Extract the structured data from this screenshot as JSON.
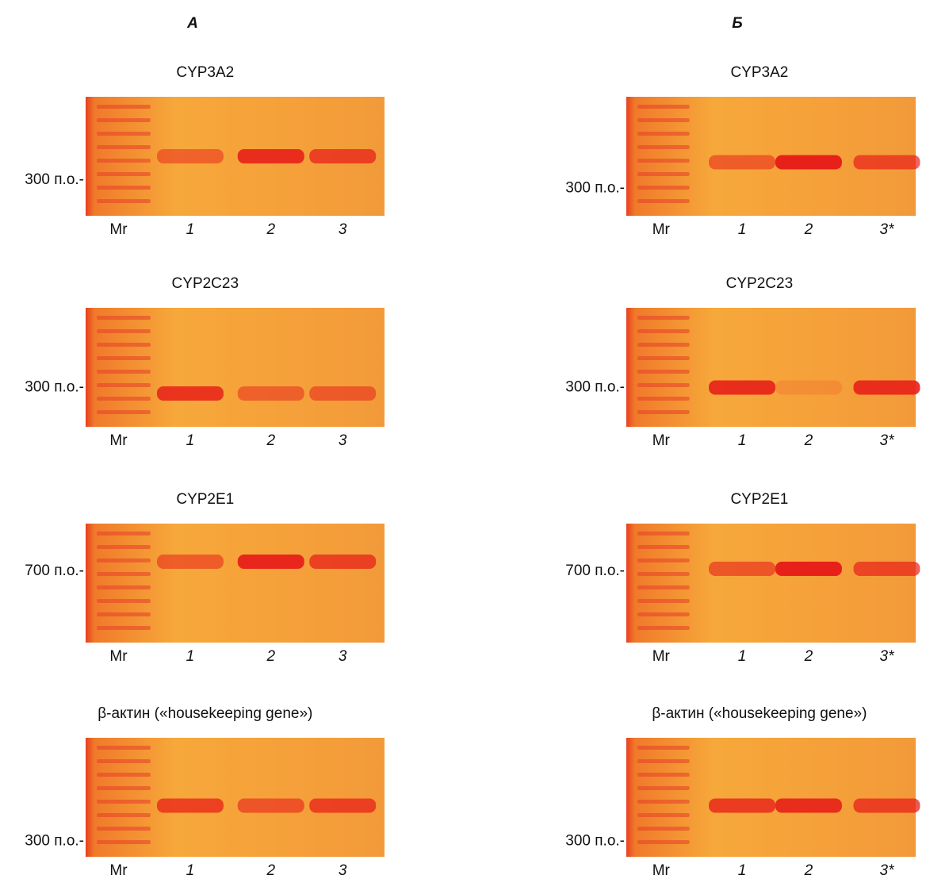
{
  "columns": [
    {
      "heading": "А",
      "panels": [
        {
          "title": "CYP3A2",
          "marker": "300 п.о.-",
          "lanes": [
            "Mr",
            "1",
            "2",
            "3"
          ]
        },
        {
          "title": "CYP2C23",
          "marker": "300 п.о.-",
          "lanes": [
            "Mr",
            "1",
            "2",
            "3"
          ]
        },
        {
          "title": "CYP2E1",
          "marker": "700 п.о.-",
          "lanes": [
            "Mr",
            "1",
            "2",
            "3"
          ]
        },
        {
          "title": "β-актин («housekeeping gene»)",
          "marker": "300 п.о.-",
          "lanes": [
            "Mr",
            "1",
            "2",
            "3"
          ]
        }
      ]
    },
    {
      "heading": "Б",
      "panels": [
        {
          "title": "CYP3A2",
          "marker": "300 п.о.-",
          "lanes": [
            "Mr",
            "1",
            "2",
            "3*"
          ]
        },
        {
          "title": "CYP2C23",
          "marker": "300 п.о.-",
          "lanes": [
            "Mr",
            "1",
            "2",
            "3*"
          ]
        },
        {
          "title": "CYP2E1",
          "marker": "700 п.о.-",
          "lanes": [
            "Mr",
            "1",
            "2",
            "3*"
          ]
        },
        {
          "title": "β-актин («housekeeping gene»)",
          "marker": "300 п.о.-",
          "lanes": [
            "Mr",
            "1",
            "2",
            "3*"
          ]
        }
      ]
    }
  ]
}
